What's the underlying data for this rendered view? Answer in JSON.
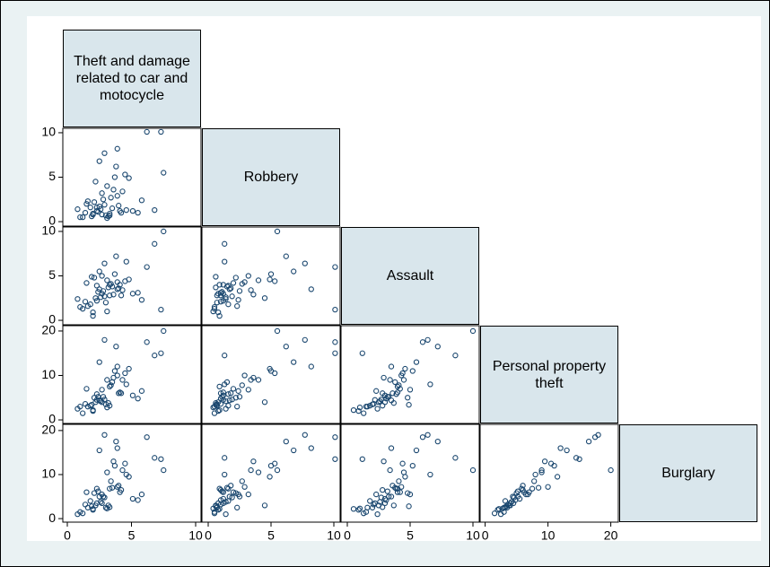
{
  "chart_data": {
    "type": "scatter_matrix",
    "variables": [
      {
        "name": "Theft and damage related to car and motocycle",
        "lim": [
          -0.35,
          10.42
        ],
        "ticks": [
          0,
          5,
          10
        ],
        "values": [
          1.0,
          2.3,
          3.1,
          2.8,
          4.2,
          2.0,
          3.5,
          1.5,
          6.2,
          7.3,
          2.7,
          3.9,
          2.2,
          4.5,
          3.0,
          1.8,
          2.5,
          5.1,
          3.3,
          0.8,
          2.9,
          4.0,
          3.6,
          2.1,
          1.2,
          5.5,
          3.8,
          2.6,
          4.8,
          3.2,
          1.6,
          2.4,
          6.8,
          3.4,
          2.0,
          4.3,
          2.9,
          3.7,
          1.9,
          5.8,
          2.3,
          3.1,
          4.6,
          2.7,
          1.4,
          3.9,
          7.5,
          2.5,
          3.3,
          4.1
        ]
      },
      {
        "name": "Robbery",
        "lim": [
          -0.5,
          10.5
        ],
        "ticks": [
          0,
          5,
          10
        ],
        "values": [
          0.5,
          1.2,
          4.0,
          2.5,
          1.0,
          0.8,
          1.5,
          2.0,
          10.1,
          10.1,
          3.2,
          8.2,
          4.5,
          5.3,
          0.7,
          1.6,
          6.8,
          1.2,
          0.9,
          1.4,
          7.7,
          1.8,
          3.6,
          2.2,
          0.5,
          1.0,
          6.2,
          1.4,
          4.9,
          0.6,
          2.3,
          1.1,
          1.3,
          2.7,
          0.9,
          3.4,
          1.9,
          5.0,
          0.6,
          2.4,
          1.6,
          0.4,
          1.3,
          0.8,
          1.0,
          2.9,
          5.5,
          1.7,
          0.7,
          1.2
        ]
      },
      {
        "name": "Assault",
        "lim": [
          -0.5,
          10.5
        ],
        "ticks": [
          0,
          5,
          10
        ],
        "values": [
          1.5,
          2.2,
          4.5,
          3.3,
          2.8,
          0.9,
          3.8,
          4.2,
          6.0,
          1.2,
          5.0,
          3.5,
          2.5,
          4.4,
          2.0,
          1.8,
          5.5,
          3.0,
          4.0,
          2.4,
          6.4,
          3.6,
          2.9,
          4.8,
          1.3,
          3.1,
          7.2,
          2.6,
          4.6,
          3.7,
          1.6,
          3.2,
          8.6,
          4.1,
          0.5,
          3.4,
          2.7,
          5.2,
          4.9,
          2.3,
          3.9,
          1.0,
          6.6,
          3.0,
          2.1,
          4.3,
          10.0,
          3.5,
          2.8,
          4.0
        ]
      },
      {
        "name": "Personal property theft",
        "lim": [
          -0.8,
          21.2
        ],
        "ticks": [
          0,
          10,
          20
        ],
        "values": [
          3.0,
          4.5,
          9.0,
          5.2,
          6.0,
          2.0,
          8.5,
          7.0,
          17.5,
          15.0,
          6.8,
          12.0,
          4.0,
          10.5,
          3.5,
          3.2,
          13.0,
          5.5,
          7.5,
          2.5,
          18.0,
          6.0,
          9.5,
          5.0,
          1.5,
          4.8,
          16.5,
          4.2,
          11.5,
          3.8,
          3.0,
          5.2,
          14.5,
          7.8,
          2.2,
          9.0,
          4.6,
          11.0,
          3.4,
          6.5,
          5.8,
          2.8,
          8.0,
          4.0,
          3.6,
          10.0,
          20.0,
          4.4,
          3.2,
          6.2
        ]
      },
      {
        "name": "Burglary",
        "lim": [
          -0.8,
          21.4
        ],
        "ticks": [
          0,
          10,
          20
        ],
        "values": [
          1.5,
          3.5,
          10.5,
          5.0,
          6.5,
          2.0,
          7.0,
          6.0,
          18.5,
          13.5,
          5.5,
          16.0,
          3.0,
          12.5,
          2.5,
          4.0,
          15.5,
          4.5,
          6.8,
          1.0,
          19.0,
          7.5,
          13.0,
          5.8,
          1.2,
          4.2,
          17.5,
          3.8,
          9.5,
          3.0,
          2.5,
          6.2,
          13.8,
          8.5,
          2.2,
          11.0,
          4.8,
          12.0,
          2.8,
          5.5,
          6.8,
          2.3,
          10.0,
          3.5,
          3.2,
          7.2,
          11.0,
          5.0,
          2.6,
          6.0
        ]
      }
    ]
  }
}
